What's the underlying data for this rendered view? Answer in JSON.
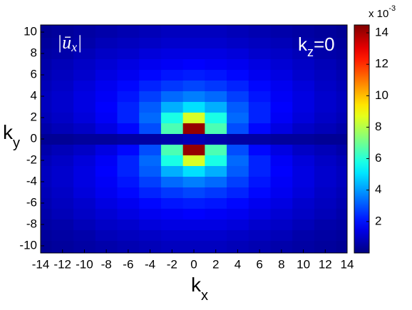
{
  "chart_data": {
    "type": "contour",
    "xlabel": [
      "k",
      "x"
    ],
    "ylabel": [
      "k",
      "y"
    ],
    "annotations": [
      [
        "|ū",
        "x",
        "|"
      ],
      [
        "k",
        "z",
        "=0"
      ]
    ],
    "colorbar_label": [
      "x 10",
      "-3"
    ],
    "xlim": [
      -14,
      14
    ],
    "ylim": [
      -10.67,
      10.67
    ],
    "xticks": [
      -14,
      -12,
      -10,
      -8,
      -6,
      -4,
      -2,
      0,
      2,
      4,
      6,
      8,
      10,
      12,
      14
    ],
    "yticks": [
      -10,
      -8,
      -6,
      -4,
      -2,
      0,
      2,
      4,
      6,
      8,
      10
    ],
    "clim": [
      0,
      14.5
    ],
    "cticks": [
      2,
      4,
      6,
      8,
      10,
      12,
      14
    ],
    "colormap": "jet",
    "x": [
      -14,
      -12,
      -10,
      -8,
      -6,
      -4,
      -2,
      0,
      2,
      4,
      6,
      8,
      10,
      12,
      14
    ],
    "y": [
      -10,
      -9,
      -8,
      -7,
      -6,
      -5,
      -4,
      -3,
      -2,
      -1,
      0,
      1,
      2,
      3,
      4,
      5,
      6,
      7,
      8,
      9,
      10
    ],
    "z": [
      [
        0.3,
        0.4,
        0.5,
        0.6,
        0.7,
        0.8,
        0.9,
        0.9,
        0.9,
        0.8,
        0.7,
        0.6,
        0.5,
        0.4,
        0.3
      ],
      [
        0.4,
        0.5,
        0.6,
        0.8,
        0.9,
        1.0,
        1.1,
        1.1,
        1.1,
        1.0,
        0.9,
        0.8,
        0.6,
        0.5,
        0.4
      ],
      [
        0.5,
        0.6,
        0.8,
        1.0,
        1.1,
        1.3,
        1.4,
        1.4,
        1.4,
        1.3,
        1.1,
        1.0,
        0.8,
        0.6,
        0.5
      ],
      [
        0.6,
        0.8,
        1.0,
        1.2,
        1.4,
        1.6,
        1.7,
        1.8,
        1.7,
        1.6,
        1.4,
        1.2,
        1.0,
        0.8,
        0.6
      ],
      [
        0.7,
        0.9,
        1.1,
        1.4,
        1.6,
        1.9,
        2.1,
        2.2,
        2.1,
        1.9,
        1.6,
        1.4,
        1.1,
        0.9,
        0.7
      ],
      [
        0.8,
        1.0,
        1.3,
        1.6,
        1.9,
        2.3,
        2.6,
        2.8,
        2.6,
        2.3,
        1.9,
        1.6,
        1.3,
        1.0,
        0.8
      ],
      [
        0.9,
        1.1,
        1.4,
        1.7,
        2.1,
        2.7,
        3.3,
        3.6,
        3.3,
        2.7,
        2.1,
        1.7,
        1.4,
        1.1,
        0.9
      ],
      [
        0.9,
        1.1,
        1.4,
        1.8,
        2.3,
        3.1,
        4.3,
        5.0,
        4.3,
        3.1,
        2.3,
        1.8,
        1.4,
        1.1,
        0.9
      ],
      [
        0.8,
        1.0,
        1.3,
        1.7,
        2.3,
        3.3,
        5.8,
        8.5,
        5.8,
        3.3,
        2.3,
        1.7,
        1.3,
        1.0,
        0.8
      ],
      [
        0.6,
        0.8,
        1.0,
        1.4,
        1.9,
        2.9,
        6.5,
        14.2,
        6.5,
        2.9,
        1.9,
        1.4,
        1.0,
        0.8,
        0.6
      ],
      [
        0.3,
        0.3,
        0.4,
        0.4,
        0.5,
        0.5,
        0.6,
        0.8,
        0.6,
        0.5,
        0.5,
        0.4,
        0.4,
        0.3,
        0.3
      ],
      [
        0.6,
        0.8,
        1.0,
        1.4,
        1.9,
        2.9,
        6.5,
        14.2,
        6.5,
        2.9,
        1.9,
        1.4,
        1.0,
        0.8,
        0.6
      ],
      [
        0.8,
        1.0,
        1.3,
        1.7,
        2.3,
        3.3,
        5.8,
        8.5,
        5.8,
        3.3,
        2.3,
        1.7,
        1.3,
        1.0,
        0.8
      ],
      [
        0.9,
        1.1,
        1.4,
        1.8,
        2.3,
        3.1,
        4.3,
        5.0,
        4.3,
        3.1,
        2.3,
        1.8,
        1.4,
        1.1,
        0.9
      ],
      [
        0.9,
        1.1,
        1.4,
        1.7,
        2.1,
        2.7,
        3.3,
        3.6,
        3.3,
        2.7,
        2.1,
        1.7,
        1.4,
        1.1,
        0.9
      ],
      [
        0.8,
        1.0,
        1.3,
        1.6,
        1.9,
        2.3,
        2.6,
        2.8,
        2.6,
        2.3,
        1.9,
        1.6,
        1.3,
        1.0,
        0.8
      ],
      [
        0.7,
        0.9,
        1.1,
        1.4,
        1.6,
        1.9,
        2.1,
        2.2,
        2.1,
        1.9,
        1.6,
        1.4,
        1.1,
        0.9,
        0.7
      ],
      [
        0.6,
        0.8,
        1.0,
        1.2,
        1.4,
        1.6,
        1.7,
        1.8,
        1.7,
        1.6,
        1.4,
        1.2,
        1.0,
        0.8,
        0.6
      ],
      [
        0.5,
        0.6,
        0.8,
        1.0,
        1.1,
        1.3,
        1.4,
        1.4,
        1.4,
        1.3,
        1.1,
        1.0,
        0.8,
        0.6,
        0.5
      ],
      [
        0.4,
        0.5,
        0.6,
        0.8,
        0.9,
        1.0,
        1.1,
        1.1,
        1.1,
        1.0,
        0.9,
        0.8,
        0.6,
        0.5,
        0.4
      ],
      [
        0.3,
        0.4,
        0.5,
        0.6,
        0.7,
        0.8,
        0.9,
        0.9,
        0.9,
        0.8,
        0.7,
        0.6,
        0.5,
        0.4,
        0.3
      ]
    ]
  }
}
